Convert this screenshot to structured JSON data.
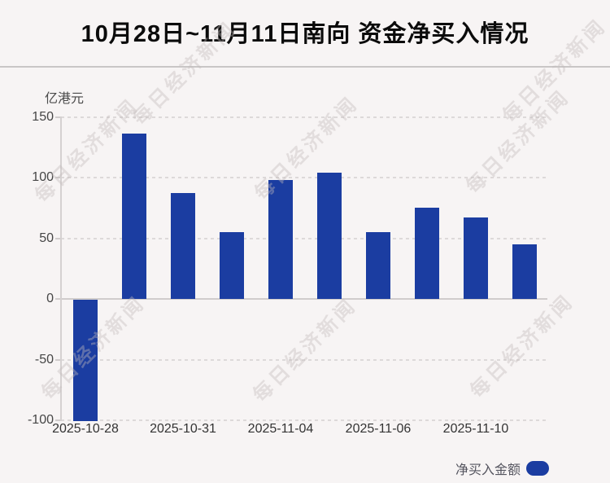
{
  "watermark": {
    "text": "每日经济新闻"
  },
  "legend": {
    "label": "净买入金额"
  },
  "chart_data": {
    "type": "bar",
    "title": "10月28日~11月11日南向 资金净买入情况",
    "unit_label": "亿港元",
    "legend_label": "净买入金额",
    "legend_position": "bottom-right",
    "values": [
      -100,
      136,
      87,
      55,
      98,
      104,
      55,
      75,
      67,
      45
    ],
    "x_tick_labels": [
      "2025-10-28",
      "2025-10-31",
      "2025-11-04",
      "2025-11-06",
      "2025-11-10"
    ],
    "x_tick_bar_indices": [
      0,
      2,
      4,
      6,
      8
    ],
    "y_ticks": [
      150,
      100,
      50,
      0,
      -50,
      -100
    ],
    "ylim": [
      -100,
      150
    ],
    "grid": true,
    "bar_color": "#1b3da1"
  }
}
